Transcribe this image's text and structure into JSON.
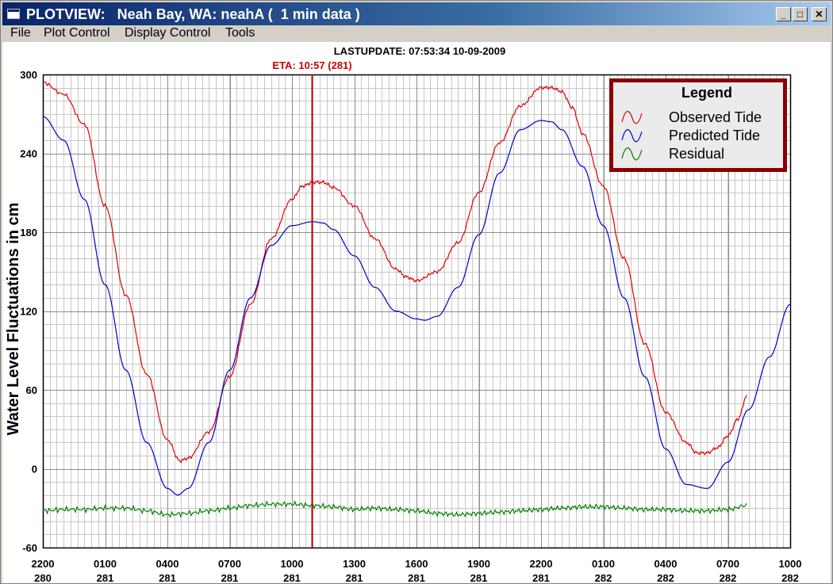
{
  "window": {
    "title": "PLOTVIEW:   Neah Bay, WA: neahA (  1 min data )",
    "minimize_glyph": "_",
    "maximize_glyph": "□",
    "close_glyph": "✕"
  },
  "menu": {
    "items": [
      "File",
      "Plot Control",
      "Display Control",
      "Tools"
    ]
  },
  "plot": {
    "last_update": "LASTUPDATE: 07:53:34  10-09-2009",
    "eta_label": "ETA: 10:57 (281)",
    "eta_color": "#cc0000"
  },
  "chart_data": {
    "type": "line",
    "ylabel": "Water Level Fluctuations in cm",
    "ylim": [
      -60,
      300
    ],
    "y_ticks": [
      -60,
      0,
      60,
      120,
      180,
      240,
      300
    ],
    "x_range_hours": [
      0,
      36
    ],
    "x_ticks": [
      {
        "hour": 0,
        "time": "2200",
        "day": "280"
      },
      {
        "hour": 3,
        "time": "0100",
        "day": "281"
      },
      {
        "hour": 6,
        "time": "0400",
        "day": "281"
      },
      {
        "hour": 9,
        "time": "0700",
        "day": "281"
      },
      {
        "hour": 12,
        "time": "1000",
        "day": "281"
      },
      {
        "hour": 15,
        "time": "1300",
        "day": "281"
      },
      {
        "hour": 18,
        "time": "1600",
        "day": "281"
      },
      {
        "hour": 21,
        "time": "1900",
        "day": "281"
      },
      {
        "hour": 24,
        "time": "2200",
        "day": "281"
      },
      {
        "hour": 27,
        "time": "0100",
        "day": "282"
      },
      {
        "hour": 30,
        "time": "0400",
        "day": "282"
      },
      {
        "hour": 33,
        "time": "0700",
        "day": "282"
      },
      {
        "hour": 36,
        "time": "1000",
        "day": "282"
      }
    ],
    "eta_hour": 12.95,
    "grid": true,
    "legend": {
      "title": "Legend",
      "placement": "top-right"
    },
    "series": [
      {
        "name": "Observed Tide",
        "color": "#e00000",
        "x": [
          0,
          1,
          2,
          3,
          4,
          5,
          6,
          6.6,
          7,
          8,
          9,
          10,
          11,
          12,
          12.5,
          13,
          13.5,
          14,
          15,
          16,
          17,
          17.5,
          18,
          19,
          20,
          21,
          22,
          23,
          24,
          24.5,
          25,
          25.5,
          26,
          27,
          28,
          29,
          30,
          31,
          31.5,
          32,
          32.5,
          33,
          33.5,
          33.9
        ],
        "y": [
          294,
          285,
          262,
          200,
          132,
          72,
          22,
          6,
          8,
          28,
          70,
          125,
          175,
          205,
          215,
          218,
          218,
          214,
          200,
          175,
          152,
          146,
          143,
          150,
          172,
          210,
          248,
          276,
          290,
          290,
          287,
          275,
          255,
          215,
          160,
          95,
          43,
          20,
          12,
          12,
          16,
          25,
          38,
          55
        ]
      },
      {
        "name": "Predicted Tide",
        "color": "#0000cc",
        "x": [
          0,
          1,
          2,
          3,
          4,
          5,
          6,
          6.5,
          7,
          8,
          9,
          10,
          11,
          12,
          13,
          13.5,
          14,
          15,
          16,
          17,
          18,
          18.4,
          19,
          20,
          21,
          22,
          23,
          24,
          24.5,
          25,
          26,
          27,
          28,
          29,
          30,
          31,
          32,
          33,
          34,
          35,
          36
        ],
        "y": [
          268,
          250,
          205,
          140,
          75,
          20,
          -15,
          -20,
          -15,
          20,
          75,
          130,
          170,
          185,
          188,
          187,
          182,
          162,
          138,
          120,
          114,
          113,
          116,
          138,
          178,
          225,
          258,
          265,
          264,
          258,
          230,
          185,
          130,
          70,
          15,
          -12,
          -15,
          5,
          45,
          85,
          125
        ]
      },
      {
        "name": "Residual",
        "color": "#008000",
        "x": [
          0,
          1,
          2,
          3,
          4,
          5,
          6,
          7,
          8,
          9,
          10,
          11,
          12,
          13,
          14,
          15,
          16,
          17,
          18,
          19,
          20,
          21,
          22,
          23,
          24,
          25,
          26,
          27,
          28,
          29,
          30,
          31,
          32,
          33,
          33.9
        ],
        "y": [
          -32,
          -31,
          -31,
          -30,
          -30,
          -32,
          -35,
          -34,
          -32,
          -30,
          -28,
          -27,
          -27,
          -28,
          -29,
          -31,
          -30,
          -31,
          -32,
          -34,
          -35,
          -34,
          -33,
          -32,
          -31,
          -30,
          -29,
          -29,
          -30,
          -31,
          -31,
          -32,
          -32,
          -31,
          -28
        ]
      }
    ]
  }
}
